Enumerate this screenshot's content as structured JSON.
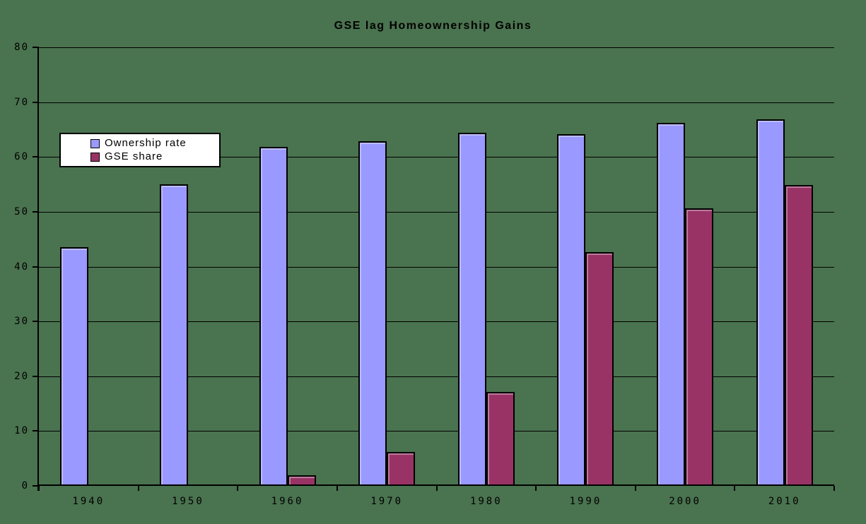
{
  "title": "GSE lag Homeownership Gains",
  "legend": {
    "items": [
      {
        "label": "Ownership rate",
        "color": "#9999ff"
      },
      {
        "label": "GSE share",
        "color": "#993366"
      }
    ]
  },
  "chart_data": {
    "type": "bar",
    "title": "GSE lag Homeownership Gains",
    "categories": [
      "1940",
      "1950",
      "1960",
      "1970",
      "1980",
      "1990",
      "2000",
      "2010"
    ],
    "series": [
      {
        "name": "Ownership rate",
        "color": "#9999ff",
        "values": [
          43.6,
          55.0,
          61.9,
          62.9,
          64.4,
          64.2,
          66.2,
          66.9
        ]
      },
      {
        "name": "GSE share",
        "color": "#993366",
        "values": [
          0,
          0,
          1.9,
          6.2,
          17.2,
          42.6,
          50.6,
          54.9
        ]
      }
    ],
    "xlabel": "",
    "ylabel": "",
    "ylim": [
      0,
      80
    ],
    "yticks": [
      0,
      10,
      20,
      30,
      40,
      50,
      60,
      70,
      80
    ],
    "ytick_labels": [
      "0",
      "10",
      "20",
      "30",
      "40",
      "50",
      "60",
      "70",
      "80"
    ],
    "grid": true,
    "legend_position": "upper-left-inside",
    "colors": {
      "background": "#4a734f",
      "gridline": "#000000",
      "axis": "#000000",
      "bar_border": "#000000",
      "legend_background": "#ffffff",
      "text": "#000000"
    }
  }
}
